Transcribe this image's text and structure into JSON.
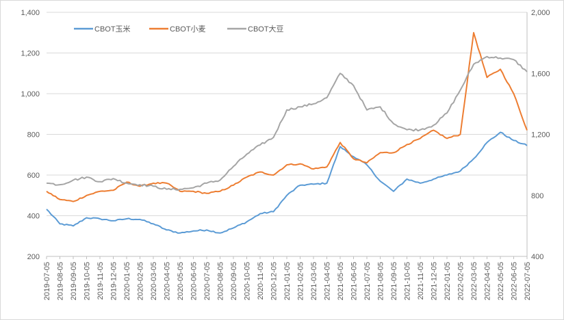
{
  "chart_data": {
    "type": "line",
    "title": "",
    "xlabel": "",
    "ylabel": "",
    "legend_position": "top-left",
    "grid": "horizontal",
    "x_tick_labels": [
      "2019-07-05",
      "2019-08-05",
      "2019-09-05",
      "2019-10-05",
      "2019-11-05",
      "2019-12-05",
      "2020-01-05",
      "2020-02-05",
      "2020-03-05",
      "2020-04-05",
      "2020-05-05",
      "2020-06-05",
      "2020-07-05",
      "2020-08-05",
      "2020-09-05",
      "2020-10-05",
      "2020-11-05",
      "2020-12-05",
      "2021-01-05",
      "2021-02-05",
      "2021-03-05",
      "2021-04-05",
      "2021-05-05",
      "2021-06-05",
      "2021-07-05",
      "2021-08-05",
      "2021-09-05",
      "2021-10-05",
      "2021-11-05",
      "2021-12-05",
      "2022-01-05",
      "2022-02-05",
      "2022-03-05",
      "2022-04-05",
      "2022-05-05",
      "2022-06-05",
      "2022-07-05"
    ],
    "y_left": {
      "ylim": [
        200,
        1400
      ],
      "ticks": [
        "200",
        "400",
        "600",
        "800",
        "1,000",
        "1,200",
        "1,400"
      ]
    },
    "y_right": {
      "ylim": [
        400,
        2000
      ],
      "ticks": [
        "400",
        "800",
        "1,200",
        "1,600",
        "2,000"
      ]
    },
    "series": [
      {
        "name": "CBOT玉米",
        "axis": "left",
        "color": "#5B9BD5",
        "values": [
          432,
          360,
          350,
          390,
          385,
          375,
          385,
          382,
          360,
          330,
          315,
          325,
          330,
          315,
          340,
          370,
          410,
          420,
          500,
          550,
          555,
          560,
          740,
          690,
          650,
          570,
          520,
          580,
          560,
          580,
          600,
          620,
          680,
          760,
          810,
          770,
          745
        ]
      },
      {
        "name": "CBOT小麦",
        "axis": "left",
        "color": "#ED7D31",
        "values": [
          520,
          480,
          470,
          500,
          520,
          525,
          565,
          545,
          560,
          560,
          520,
          520,
          510,
          520,
          550,
          590,
          615,
          600,
          650,
          655,
          630,
          640,
          760,
          680,
          660,
          710,
          710,
          750,
          780,
          820,
          780,
          800,
          1300,
          1080,
          1120,
          1000,
          820
        ]
      },
      {
        "name": "CBOT大豆",
        "axis": "right",
        "color": "#A5A5A5",
        "values": [
          880,
          870,
          900,
          920,
          890,
          910,
          880,
          870,
          860,
          840,
          840,
          850,
          880,
          900,
          990,
          1070,
          1130,
          1180,
          1360,
          1380,
          1400,
          1440,
          1600,
          1520,
          1360,
          1380,
          1270,
          1230,
          1230,
          1260,
          1340,
          1490,
          1660,
          1710,
          1700,
          1690,
          1610
        ]
      }
    ]
  }
}
